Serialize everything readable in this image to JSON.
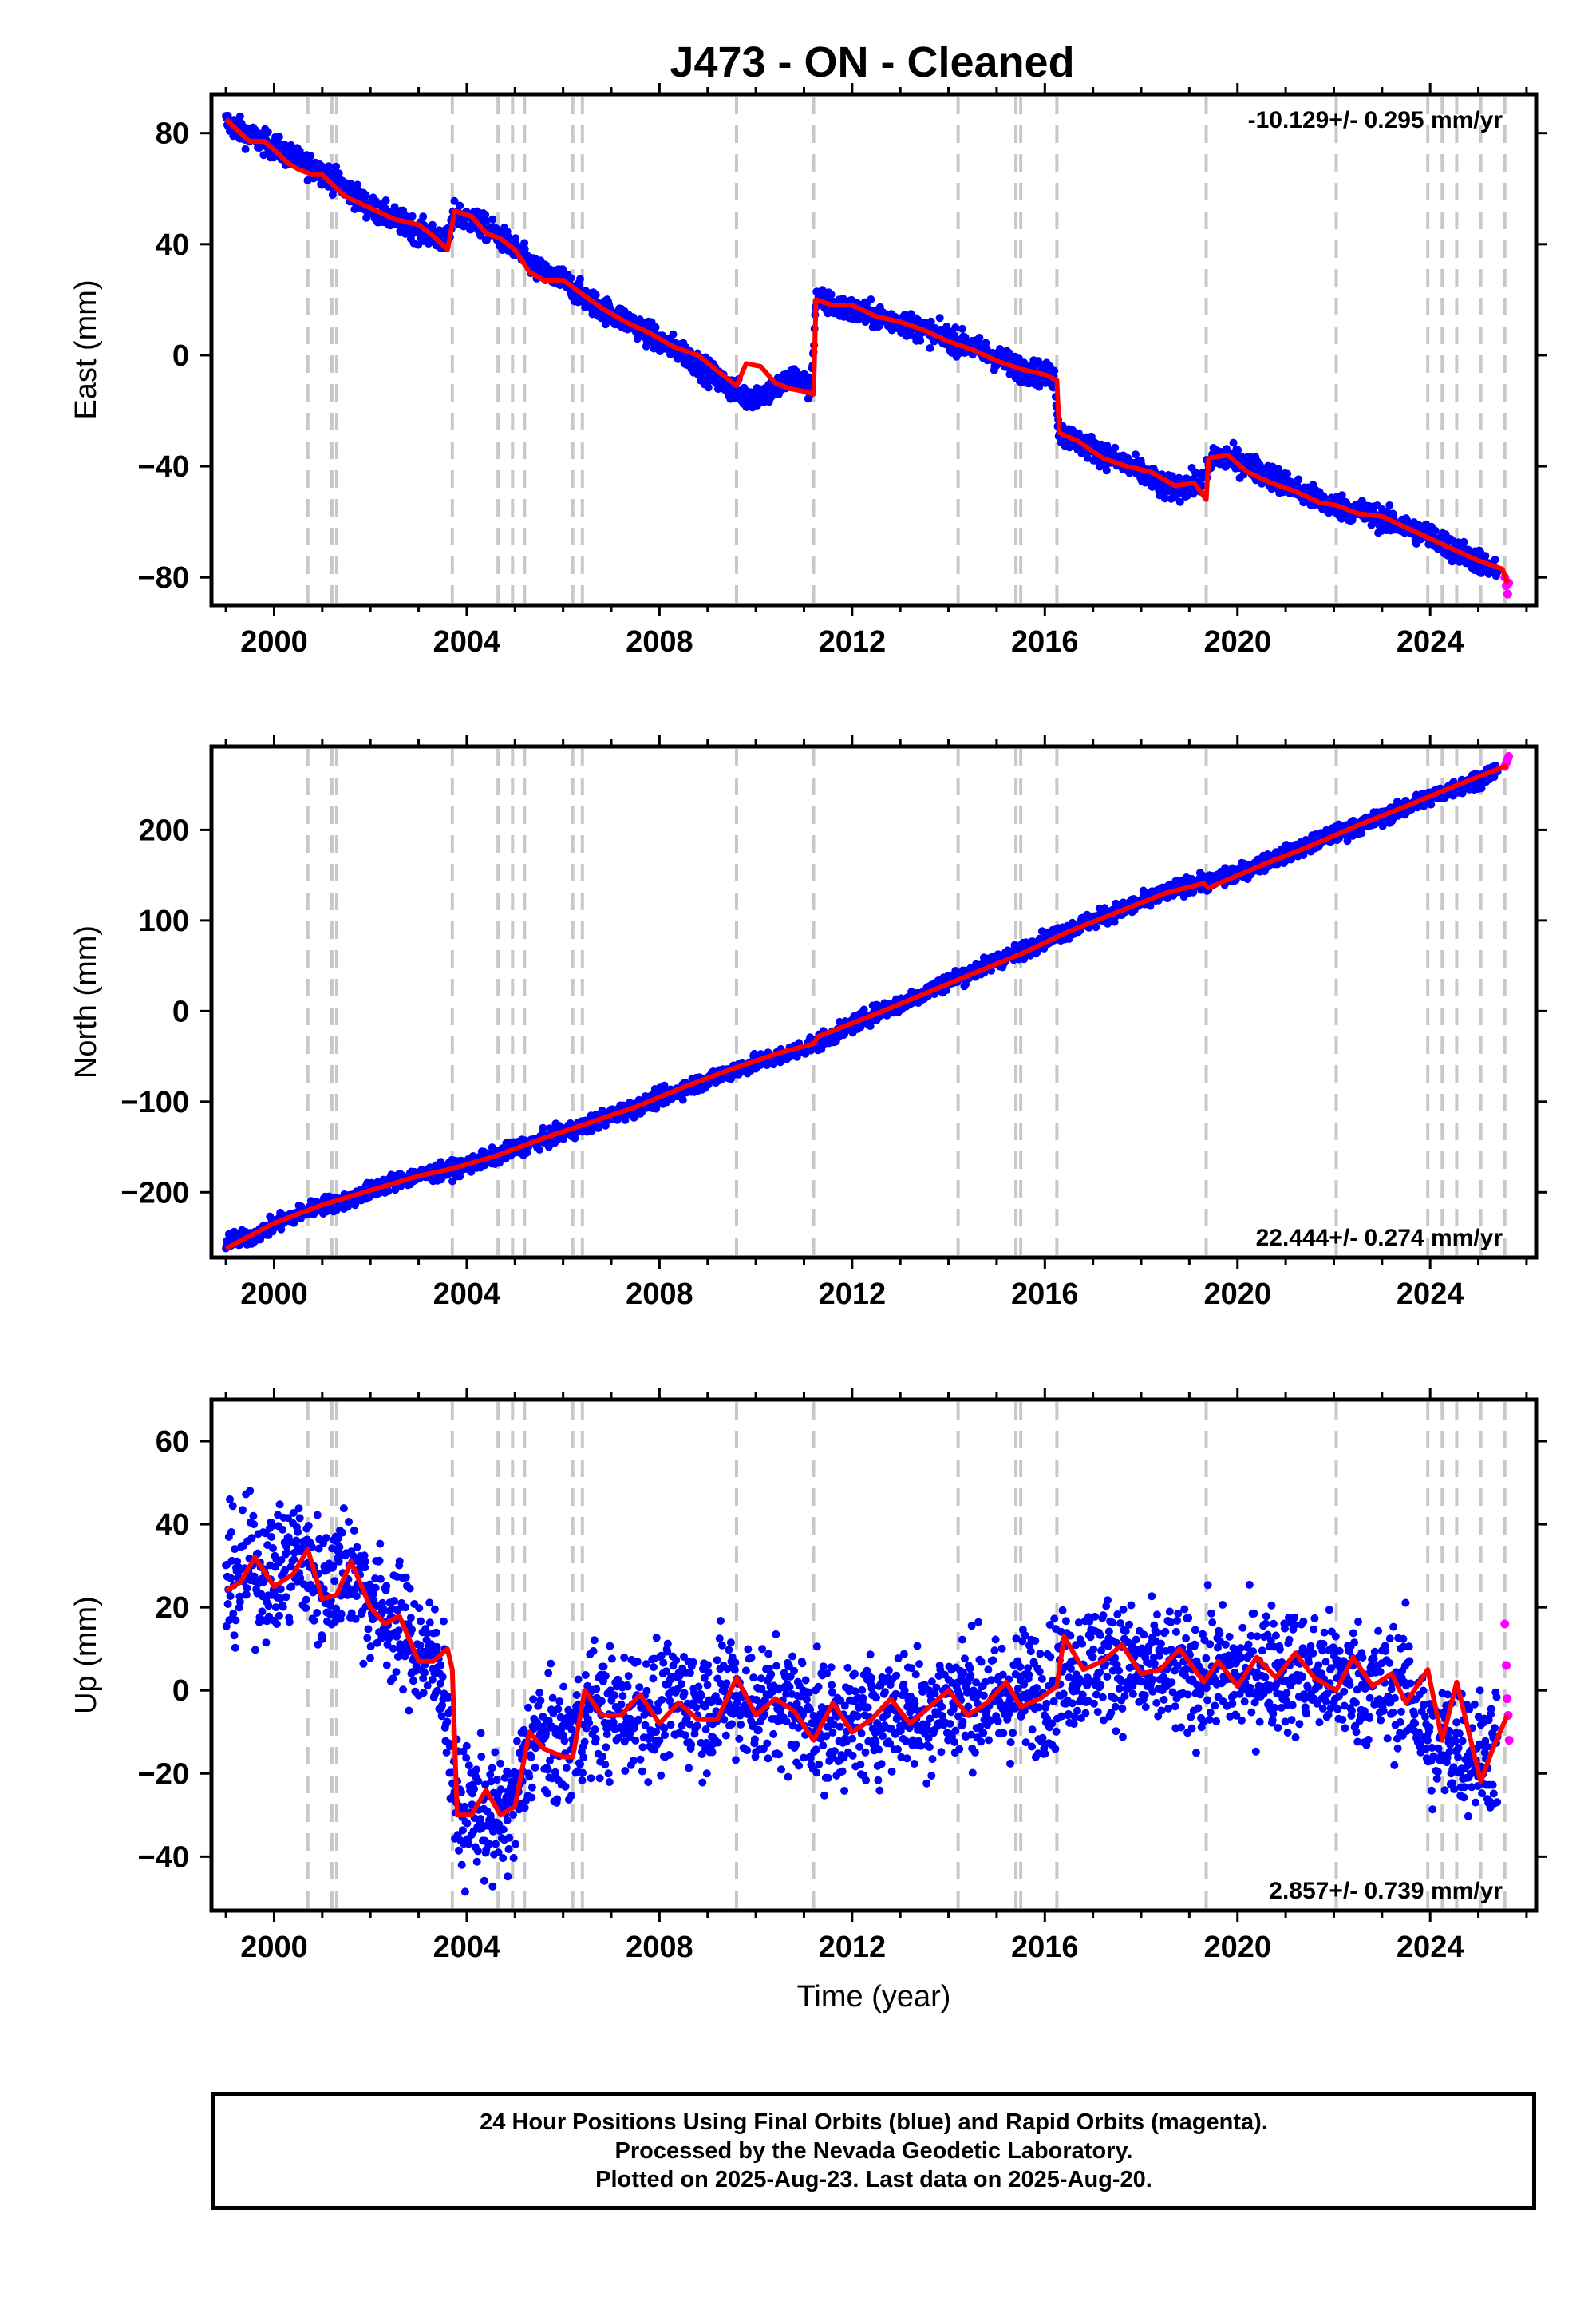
{
  "title": "J473  - ON - Cleaned",
  "colors": {
    "final": "#0000ff",
    "rapid": "#ff00ff",
    "model": "#ff0000",
    "breaks": "#c8c8c8"
  },
  "footer": {
    "line1": "24 Hour Positions Using Final Orbits (blue) and Rapid Orbits (magenta).",
    "line2": "Processed by the Nevada Geodetic Laboratory.",
    "line3": "Plotted on 2025-Aug-23. Last data on 2025-Aug-20."
  },
  "chart_data": [
    {
      "type": "scatter",
      "panel": "east",
      "ylabel": "East (mm)",
      "xlabel": "",
      "xlim": [
        1998.7,
        2026.2
      ],
      "ylim": [
        -90,
        94
      ],
      "yticks": [
        80,
        40,
        0,
        -40,
        -80
      ],
      "yticklabels": [
        "80",
        "40",
        "0",
        "−40",
        "−80"
      ],
      "xticks": [
        2000,
        2004,
        2008,
        2012,
        2016,
        2020,
        2024
      ],
      "xticklabels": [
        "2000",
        "2004",
        "2008",
        "2012",
        "2016",
        "2020",
        "2024"
      ],
      "rate_text": "-10.129+/- 0.295 mm/yr",
      "rate_position": "top-right",
      "grid": false,
      "equipment_changes": [
        2000.7,
        2001.2,
        2001.3,
        2003.7,
        2004.65,
        2004.95,
        2005.2,
        2006.2,
        2006.4,
        2009.6,
        2011.2,
        2014.2,
        2015.4,
        2015.5,
        2016.25,
        2019.35,
        2022.05,
        2023.95,
        2024.25,
        2024.55,
        2025.05,
        2025.55
      ],
      "series": [
        {
          "name": "Final Orbits (blue)",
          "kind": "final",
          "x": [
            1999.0,
            1999.5,
            2000.0,
            2000.5,
            2001.0,
            2001.5,
            2002.0,
            2002.5,
            2003.0,
            2003.6,
            2003.75,
            2004.3,
            2004.9,
            2005.5,
            2006.0,
            2006.5,
            2007.0,
            2007.5,
            2008.0,
            2008.5,
            2009.0,
            2009.5,
            2009.8,
            2010.3,
            2010.8,
            2011.15,
            2011.25,
            2011.8,
            2012.5,
            2013.0,
            2013.5,
            2014.0,
            2014.5,
            2015.0,
            2015.5,
            2016.2,
            2016.3,
            2016.8,
            2017.5,
            2018.0,
            2018.5,
            2019.0,
            2019.3,
            2019.5,
            2020.0,
            2020.5,
            2021.0,
            2021.5,
            2022.0,
            2022.5,
            2023.0,
            2023.5,
            2024.0,
            2024.5,
            2025.0,
            2025.4
          ],
          "y": [
            84,
            79,
            75,
            70,
            66,
            60,
            53,
            49,
            45,
            41,
            51,
            47,
            40,
            30,
            27,
            20,
            15,
            11,
            5,
            1,
            -6,
            -12,
            -15,
            -13,
            -8,
            -12,
            20,
            17,
            14,
            12,
            9,
            6,
            3,
            -1,
            -5,
            -8,
            -28,
            -32,
            -38,
            -42,
            -48,
            -47,
            -45,
            -36,
            -38,
            -42,
            -46,
            -51,
            -54,
            -56,
            -59,
            -62,
            -65,
            -70,
            -74,
            -79
          ]
        },
        {
          "name": "Rapid Orbits (magenta)",
          "kind": "rapid",
          "x": [
            2025.55,
            2025.58,
            2025.61,
            2025.63
          ],
          "y": [
            -80,
            -83,
            -86,
            -82
          ]
        },
        {
          "name": "model",
          "kind": "model",
          "x": [
            1999.0,
            1999.3,
            1999.5,
            1999.8,
            2000.0,
            2000.3,
            2000.5,
            2000.8,
            2001.0,
            2001.3,
            2001.5,
            2002.0,
            2002.5,
            2003.0,
            2003.3,
            2003.6,
            2003.75,
            2004.1,
            2004.4,
            2004.7,
            2005.0,
            2005.3,
            2005.6,
            2006.0,
            2006.4,
            2006.8,
            2007.3,
            2007.8,
            2008.3,
            2008.8,
            2009.3,
            2009.6,
            2009.8,
            2010.1,
            2010.4,
            2010.7,
            2011.0,
            2011.2,
            2011.25,
            2011.6,
            2012.0,
            2012.5,
            2013.0,
            2013.5,
            2014.0,
            2014.5,
            2015.0,
            2015.5,
            2016.0,
            2016.25,
            2016.3,
            2016.7,
            2017.2,
            2017.7,
            2018.2,
            2018.7,
            2019.1,
            2019.35,
            2019.4,
            2019.8,
            2020.2,
            2020.7,
            2021.2,
            2021.7,
            2022.05,
            2022.5,
            2023.0,
            2023.5,
            2024.0,
            2024.5,
            2025.0,
            2025.5,
            2025.6
          ],
          "y": [
            85,
            80,
            77,
            77,
            74,
            69,
            67,
            65,
            65,
            60,
            57,
            53,
            49,
            47,
            43,
            38,
            52,
            50,
            44,
            42,
            38,
            30,
            27,
            27,
            22,
            17,
            12,
            8,
            3,
            0,
            -7,
            -11,
            -3,
            -4,
            -10,
            -12,
            -13,
            -14,
            20,
            18,
            18,
            14,
            12,
            9,
            5,
            2,
            -2,
            -5,
            -7,
            -9,
            -28,
            -31,
            -37,
            -40,
            -42,
            -47,
            -46,
            -52,
            -37,
            -36,
            -42,
            -46,
            -49,
            -53,
            -54,
            -57,
            -58,
            -62,
            -66,
            -70,
            -74,
            -77,
            -82
          ]
        }
      ]
    },
    {
      "type": "scatter",
      "panel": "north",
      "ylabel": "North (mm)",
      "xlabel": "",
      "xlim": [
        1998.7,
        2026.2
      ],
      "ylim": [
        -272,
        292
      ],
      "yticks": [
        200,
        100,
        0,
        -100,
        -200
      ],
      "yticklabels": [
        "200",
        "100",
        "0",
        "−100",
        "−200"
      ],
      "xticks": [
        2000,
        2004,
        2008,
        2012,
        2016,
        2020,
        2024
      ],
      "xticklabels": [
        "2000",
        "2004",
        "2008",
        "2012",
        "2016",
        "2020",
        "2024"
      ],
      "rate_text": "22.444+/- 0.274 mm/yr",
      "rate_position": "bottom-right",
      "grid": false,
      "equipment_changes": [
        2000.7,
        2001.2,
        2001.3,
        2003.7,
        2004.65,
        2004.95,
        2005.2,
        2006.2,
        2006.4,
        2009.6,
        2011.2,
        2014.2,
        2015.4,
        2015.5,
        2016.25,
        2019.35,
        2022.05,
        2023.95,
        2024.25,
        2024.55,
        2025.05,
        2025.55
      ],
      "series": [
        {
          "name": "Final Orbits (blue)",
          "kind": "final",
          "x": [
            1999.0,
            1999.5,
            2000.0,
            2000.5,
            2001.0,
            2001.5,
            2002.0,
            2002.5,
            2003.0,
            2003.6,
            2004.0,
            2004.5,
            2005.0,
            2005.5,
            2006.0,
            2006.5,
            2007.0,
            2007.5,
            2008.0,
            2008.5,
            2009.0,
            2009.5,
            2010.0,
            2010.5,
            2011.0,
            2011.5,
            2012.0,
            2012.5,
            2013.0,
            2013.5,
            2014.0,
            2014.5,
            2015.0,
            2015.5,
            2016.0,
            2016.5,
            2017.0,
            2017.5,
            2018.0,
            2018.5,
            2019.0,
            2019.5,
            2020.0,
            2020.5,
            2021.0,
            2021.5,
            2022.0,
            2022.5,
            2023.0,
            2023.5,
            2024.0,
            2024.5,
            2025.0,
            2025.4
          ],
          "y": [
            -254,
            -250,
            -236,
            -224,
            -214,
            -210,
            -198,
            -188,
            -182,
            -176,
            -170,
            -162,
            -152,
            -143,
            -135,
            -126,
            -115,
            -107,
            -96,
            -86,
            -76,
            -66,
            -57,
            -50,
            -40,
            -30,
            -15,
            -2,
            8,
            20,
            33,
            43,
            56,
            66,
            79,
            90,
            100,
            110,
            120,
            130,
            140,
            143,
            152,
            163,
            173,
            184,
            195,
            203,
            214,
            225,
            236,
            246,
            256,
            267
          ]
        },
        {
          "name": "Rapid Orbits (magenta)",
          "kind": "rapid",
          "x": [
            2025.55,
            2025.58,
            2025.61,
            2025.63
          ],
          "y": [
            270,
            274,
            278,
            281
          ]
        },
        {
          "name": "model",
          "kind": "model",
          "x": [
            1999.0,
            2000.0,
            2001.0,
            2002.0,
            2003.0,
            2003.7,
            2004.6,
            2005.5,
            2006.5,
            2007.5,
            2008.5,
            2009.5,
            2010.5,
            2011.2,
            2011.3,
            2012.5,
            2013.5,
            2014.5,
            2015.5,
            2016.5,
            2017.5,
            2018.5,
            2019.3,
            2019.4,
            2020.5,
            2021.5,
            2022.5,
            2023.5,
            2024.5,
            2025.6
          ],
          "y": [
            -262,
            -234,
            -214,
            -198,
            -182,
            -174,
            -160,
            -142,
            -124,
            -106,
            -84,
            -64,
            -46,
            -36,
            -28,
            -3,
            19,
            41,
            63,
            88,
            109,
            130,
            141,
            136,
            161,
            182,
            205,
            226,
            248,
            271
          ]
        }
      ]
    },
    {
      "type": "scatter",
      "panel": "up",
      "ylabel": "Up (mm)",
      "xlabel": "Time (year)",
      "xlim": [
        1998.7,
        2026.2
      ],
      "ylim": [
        -53,
        70
      ],
      "yticks": [
        60,
        40,
        20,
        0,
        -20,
        -40
      ],
      "yticklabels": [
        "60",
        "40",
        "20",
        "0",
        "−20",
        "−40"
      ],
      "xticks": [
        2000,
        2004,
        2008,
        2012,
        2016,
        2020,
        2024
      ],
      "xticklabels": [
        "2000",
        "2004",
        "2008",
        "2012",
        "2016",
        "2020",
        "2024"
      ],
      "rate_text": "2.857+/- 0.739 mm/yr",
      "rate_position": "bottom-right",
      "grid": false,
      "equipment_changes": [
        2000.7,
        2001.2,
        2001.3,
        2003.7,
        2004.65,
        2004.95,
        2005.2,
        2006.2,
        2006.4,
        2009.6,
        2011.2,
        2014.2,
        2015.4,
        2015.5,
        2016.25,
        2019.35,
        2022.05,
        2023.95,
        2024.25,
        2024.55,
        2025.05,
        2025.55
      ],
      "series": [
        {
          "name": "Final Orbits (blue)",
          "kind": "final",
          "x": [
            1999.0,
            1999.5,
            2000.0,
            2000.5,
            2001.0,
            2001.5,
            2002.0,
            2002.5,
            2003.0,
            2003.5,
            2003.8,
            2004.2,
            2004.6,
            2005.0,
            2005.4,
            2005.8,
            2006.2,
            2006.6,
            2007.0,
            2007.5,
            2008.0,
            2008.5,
            2009.0,
            2009.5,
            2010.0,
            2010.5,
            2011.0,
            2011.5,
            2012.0,
            2012.5,
            2013.0,
            2013.5,
            2014.0,
            2014.5,
            2015.0,
            2015.5,
            2016.0,
            2016.5,
            2017.0,
            2017.5,
            2018.0,
            2018.5,
            2019.0,
            2019.5,
            2020.0,
            2020.5,
            2021.0,
            2021.5,
            2022.0,
            2022.5,
            2023.0,
            2023.5,
            2024.0,
            2024.5,
            2025.0,
            2025.4
          ],
          "y": [
            25,
            30,
            28,
            33,
            25,
            31,
            22,
            16,
            10,
            5,
            -30,
            -28,
            -32,
            -27,
            -10,
            -14,
            -12,
            -4,
            -6,
            -4,
            -5,
            -2,
            -4,
            0,
            -4,
            -3,
            -5,
            -9,
            -8,
            -6,
            -4,
            -5,
            -3,
            -1,
            -3,
            0,
            0,
            5,
            7,
            8,
            4,
            5,
            3,
            5,
            3,
            6,
            5,
            4,
            3,
            2,
            0,
            1,
            -13,
            -13,
            -15,
            -14
          ]
        },
        {
          "name": "Rapid Orbits (magenta)",
          "kind": "rapid",
          "x": [
            2025.55,
            2025.58,
            2025.6,
            2025.62,
            2025.64
          ],
          "y": [
            16,
            6,
            -2,
            -6,
            -12
          ]
        },
        {
          "name": "model",
          "kind": "model",
          "x": [
            1999.0,
            1999.3,
            1999.6,
            2000.0,
            2000.4,
            2000.7,
            2001.0,
            2001.3,
            2001.6,
            2002.0,
            2002.3,
            2002.6,
            2003.0,
            2003.3,
            2003.6,
            2003.7,
            2003.8,
            2004.1,
            2004.4,
            2004.7,
            2005.0,
            2005.3,
            2005.6,
            2006.0,
            2006.2,
            2006.45,
            2006.8,
            2007.2,
            2007.6,
            2008.0,
            2008.4,
            2008.8,
            2009.2,
            2009.6,
            2010.0,
            2010.4,
            2010.8,
            2011.2,
            2011.6,
            2012.0,
            2012.4,
            2012.8,
            2013.2,
            2013.6,
            2014.0,
            2014.4,
            2014.8,
            2015.2,
            2015.5,
            2015.9,
            2016.25,
            2016.4,
            2016.8,
            2017.2,
            2017.6,
            2018.0,
            2018.4,
            2018.8,
            2019.3,
            2019.6,
            2020.0,
            2020.4,
            2020.8,
            2021.2,
            2021.6,
            2022.05,
            2022.4,
            2022.8,
            2023.2,
            2023.5,
            2023.95,
            2024.25,
            2024.55,
            2025.05,
            2025.3,
            2025.6
          ],
          "y": [
            24,
            26,
            32,
            25,
            28,
            34,
            22,
            23,
            31,
            20,
            16,
            18,
            7,
            7,
            10,
            5,
            -30,
            -30,
            -24,
            -30,
            -28,
            -10,
            -14,
            -16,
            -16,
            0,
            -6,
            -6,
            -1,
            -8,
            -3,
            -7,
            -7,
            3,
            -6,
            -2,
            -5,
            -12,
            -3,
            -10,
            -7,
            -2,
            -8,
            -4,
            0,
            -6,
            -3,
            2,
            -4,
            -2,
            1,
            13,
            5,
            7,
            11,
            4,
            5,
            10,
            2,
            7,
            1,
            8,
            3,
            9,
            3,
            0,
            8,
            1,
            4,
            -3,
            5,
            -12,
            2,
            -22,
            -14,
            -6
          ]
        }
      ]
    }
  ]
}
